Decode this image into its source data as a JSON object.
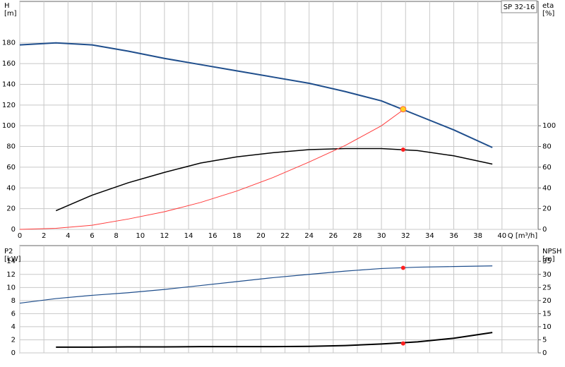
{
  "chart_data": [
    {
      "type": "line",
      "ylabel": "H",
      "yunit": "[m]",
      "y2label": "eta",
      "y2unit": "[%]",
      "xlabel": "Q [m³/h]",
      "legend": "SP 32-16",
      "xlim": [
        0,
        43
      ],
      "xticks": [
        0,
        2,
        4,
        6,
        8,
        10,
        12,
        14,
        16,
        18,
        20,
        22,
        24,
        26,
        28,
        30,
        32,
        34,
        36,
        38,
        40
      ],
      "ylim": [
        0,
        220
      ],
      "yticks": [
        0,
        20,
        40,
        60,
        80,
        100,
        120,
        140,
        160,
        180
      ],
      "y2lim": [
        0,
        220
      ],
      "y2ticks": [
        0,
        20,
        40,
        60,
        80,
        100
      ],
      "grid": true,
      "series": [
        {
          "color": "#1f4e8c",
          "width": 2,
          "x": [
            0,
            3,
            6,
            9,
            12,
            15,
            18,
            21,
            24,
            27,
            30,
            33,
            36,
            39.2
          ],
          "values": [
            178,
            180,
            178,
            172,
            165,
            159,
            153,
            147,
            141,
            133,
            124,
            110,
            96,
            79
          ]
        },
        {
          "color": "#000000",
          "width": 1.5,
          "axis": "y2",
          "x": [
            3,
            6,
            9,
            12,
            15,
            18,
            21,
            24,
            27,
            30,
            33,
            36,
            39.2
          ],
          "values": [
            18,
            33,
            45,
            55,
            64,
            70,
            74,
            77,
            78,
            78,
            76,
            71,
            63
          ]
        },
        {
          "color": "#ff3b3b",
          "width": 1,
          "x": [
            0,
            3,
            6,
            9,
            12,
            15,
            18,
            21,
            24,
            27,
            30,
            32
          ],
          "values": [
            0,
            1,
            4,
            10,
            17,
            26,
            37,
            50,
            65,
            81,
            100,
            117
          ]
        }
      ],
      "markers": [
        {
          "x": 31.8,
          "y": 116,
          "color": "#ffd21f"
        },
        {
          "x": 31.8,
          "y": 77,
          "axis": "y2",
          "color": "#ff2020"
        }
      ]
    },
    {
      "type": "line",
      "ylabel": "P2",
      "yunit": "[kW]",
      "y2label": "NPSH",
      "y2unit": "[m]",
      "xlim": [
        0,
        43
      ],
      "xticks": [
        0,
        2,
        4,
        6,
        8,
        10,
        12,
        14,
        16,
        18,
        20,
        22,
        24,
        26,
        28,
        30,
        32,
        34,
        36,
        38,
        40
      ],
      "ylim": [
        0,
        16.4
      ],
      "yticks": [
        0,
        2,
        4,
        6,
        8,
        10,
        12,
        14
      ],
      "y2lim": [
        0,
        41
      ],
      "y2ticks": [
        0,
        5,
        10,
        15,
        20,
        25,
        30,
        35
      ],
      "grid": true,
      "series": [
        {
          "color": "#1f4e8c",
          "width": 1.2,
          "x": [
            0,
            3,
            6,
            9,
            12,
            15,
            18,
            21,
            24,
            27,
            30,
            33,
            36,
            39.2
          ],
          "values": [
            7.6,
            8.3,
            8.8,
            9.2,
            9.7,
            10.3,
            10.9,
            11.5,
            12.0,
            12.5,
            12.9,
            13.1,
            13.2,
            13.3
          ]
        },
        {
          "color": "#000000",
          "width": 2,
          "axis": "y2",
          "x": [
            3,
            6,
            9,
            12,
            15,
            18,
            21,
            24,
            27,
            30,
            33,
            36,
            39.2
          ],
          "values": [
            2.2,
            2.2,
            2.3,
            2.3,
            2.4,
            2.4,
            2.4,
            2.5,
            2.8,
            3.4,
            4.2,
            5.6,
            7.8
          ]
        }
      ],
      "markers": [
        {
          "x": 31.8,
          "y": 13.0,
          "color": "#ff2020"
        },
        {
          "x": 31.8,
          "y": 3.6,
          "axis": "y2",
          "color": "#ff2020"
        }
      ]
    }
  ]
}
